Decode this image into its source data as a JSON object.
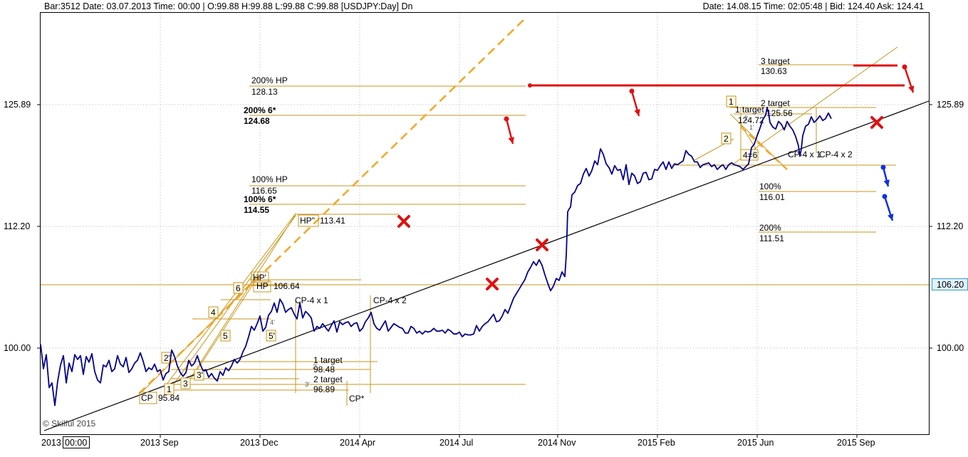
{
  "header": {
    "left": "Bar:3512  Date: 03.07.2013  Time:  00:00  | O:99.88  H:99.88  L:99.88  C:99.88   [USDJPY:Day]  Dn",
    "right": "Date: 14.08.15  Time: 02:05:48  | Bid:  124.40  Ask:  124.41"
  },
  "footer": {
    "first_label": "2013",
    "time_box": "00:00",
    "watermark": "© Skilful 2015"
  },
  "colors": {
    "price": "#00008b",
    "level": "#c8961e",
    "dash": "#f5a623",
    "red": "#e01010",
    "blue": "#1030e0",
    "highlight_bg": "#dff2fa",
    "grid": "#b8b8b8"
  },
  "chart_data": {
    "type": "line",
    "symbol": "USDJPY",
    "timeframe": "Day",
    "x_ticks": [
      "2013 Sep",
      "2013 Dec",
      "2014 Apr",
      "2014 Jul",
      "2014 Nov",
      "2015 Feb",
      "2015 Jun",
      "2015 Sep"
    ],
    "y_ticks": [
      "125.89",
      "112.20",
      "100.00"
    ],
    "current_price_label": "106.20",
    "series": [
      {
        "values": [
          [
            0,
            100.4
          ],
          [
            4,
            97.8
          ],
          [
            8,
            99.3
          ],
          [
            12,
            95.8
          ],
          [
            16,
            96.3
          ],
          [
            20,
            93.9
          ],
          [
            24,
            96.5
          ],
          [
            28,
            98.2
          ],
          [
            32,
            99.2
          ],
          [
            36,
            96.3
          ],
          [
            40,
            98.4
          ],
          [
            44,
            97.5
          ],
          [
            48,
            99.3
          ],
          [
            52,
            98.8
          ],
          [
            56,
            99.2
          ],
          [
            60,
            97.2
          ],
          [
            64,
            99.1
          ],
          [
            68,
            98.5
          ],
          [
            72,
            99.4
          ],
          [
            76,
            97.5
          ],
          [
            80,
            96.6
          ],
          [
            84,
            96.3
          ],
          [
            88,
            98.2
          ],
          [
            92,
            98.0
          ],
          [
            96,
            98.7
          ],
          [
            100,
            97.5
          ],
          [
            104,
            97.8
          ],
          [
            108,
            99.2
          ],
          [
            112,
            98.3
          ],
          [
            116,
            98.0
          ],
          [
            120,
            99.0
          ],
          [
            124,
            97.4
          ],
          [
            128,
            97.8
          ],
          [
            132,
            98.4
          ],
          [
            136,
            98.7
          ],
          [
            140,
            99.5
          ],
          [
            144,
            98.6
          ],
          [
            148,
            97.5
          ],
          [
            152,
            97.9
          ],
          [
            156,
            97.7
          ],
          [
            160,
            98.3
          ],
          [
            164,
            97.5
          ],
          [
            168,
            97.7
          ],
          [
            172,
            96.6
          ],
          [
            176,
            97.3
          ],
          [
            180,
            97.5
          ],
          [
            184,
            99.8
          ],
          [
            188,
            99.1
          ],
          [
            192,
            98.1
          ],
          [
            196,
            97.4
          ],
          [
            200,
            97.0
          ],
          [
            204,
            97.4
          ],
          [
            208,
            98.7
          ],
          [
            212,
            98.1
          ],
          [
            216,
            98.4
          ],
          [
            220,
            99.2
          ],
          [
            224,
            98.3
          ],
          [
            228,
            97.6
          ],
          [
            232,
            97.7
          ],
          [
            236,
            96.9
          ],
          [
            240,
            97.3
          ],
          [
            244,
            96.8
          ],
          [
            248,
            96.5
          ],
          [
            252,
            97.5
          ],
          [
            256,
            97.1
          ],
          [
            260,
            97.9
          ],
          [
            264,
            97.6
          ],
          [
            268,
            98.1
          ],
          [
            272,
            98.8
          ],
          [
            276,
            98.4
          ],
          [
            280,
            98.8
          ],
          [
            284,
            99.6
          ],
          [
            288,
            100.2
          ],
          [
            292,
            101.2
          ],
          [
            296,
            102.3
          ],
          [
            300,
            101.9
          ],
          [
            304,
            102.6
          ],
          [
            308,
            103.4
          ],
          [
            312,
            101.8
          ],
          [
            316,
            102.2
          ],
          [
            320,
            103.5
          ],
          [
            324,
            103.9
          ],
          [
            328,
            104.8
          ],
          [
            332,
            103.8
          ],
          [
            336,
            105.2
          ],
          [
            340,
            104.7
          ],
          [
            344,
            103.8
          ],
          [
            348,
            104.1
          ],
          [
            352,
            104.3
          ],
          [
            356,
            103.6
          ],
          [
            360,
            103.1
          ],
          [
            364,
            104.8
          ],
          [
            368,
            103.2
          ],
          [
            372,
            103.9
          ],
          [
            376,
            103.6
          ],
          [
            380,
            103.2
          ],
          [
            384,
            101.8
          ],
          [
            388,
            102.3
          ],
          [
            392,
            102.1
          ],
          [
            396,
            102.6
          ],
          [
            400,
            102.2
          ],
          [
            404,
            101.8
          ],
          [
            408,
            102.4
          ],
          [
            412,
            102.9
          ],
          [
            416,
            101.7
          ],
          [
            420,
            102.8
          ],
          [
            424,
            102.5
          ],
          [
            428,
            102.7
          ],
          [
            432,
            102.8
          ],
          [
            436,
            102.3
          ],
          [
            440,
            102.6
          ],
          [
            444,
            102.7
          ],
          [
            448,
            101.8
          ],
          [
            452,
            102.1
          ],
          [
            456,
            102.8
          ],
          [
            460,
            103.2
          ],
          [
            464,
            103.8
          ],
          [
            468,
            102.6
          ],
          [
            472,
            102.1
          ],
          [
            476,
            101.9
          ],
          [
            480,
            102.4
          ],
          [
            484,
            102.9
          ],
          [
            488,
            101.8
          ],
          [
            492,
            102.2
          ],
          [
            496,
            102.6
          ],
          [
            500,
            102.4
          ],
          [
            504,
            102.2
          ],
          [
            508,
            102.1
          ],
          [
            512,
            101.6
          ],
          [
            516,
            101.6
          ],
          [
            520,
            102.3
          ],
          [
            524,
            102.1
          ],
          [
            528,
            101.6
          ],
          [
            532,
            101.8
          ],
          [
            536,
            101.5
          ],
          [
            540,
            101.8
          ],
          [
            544,
            101.7
          ],
          [
            548,
            101.8
          ],
          [
            552,
            102.1
          ],
          [
            556,
            101.8
          ],
          [
            560,
            101.8
          ],
          [
            564,
            101.9
          ],
          [
            568,
            101.6
          ],
          [
            572,
            102.0
          ],
          [
            576,
            101.8
          ],
          [
            580,
            101.5
          ],
          [
            584,
            101.5
          ],
          [
            588,
            101.7
          ],
          [
            592,
            101.2
          ],
          [
            596,
            101.5
          ],
          [
            600,
            101.4
          ],
          [
            604,
            101.4
          ],
          [
            608,
            101.5
          ],
          [
            612,
            102.4
          ],
          [
            616,
            101.8
          ],
          [
            620,
            102.3
          ],
          [
            624,
            102.6
          ],
          [
            628,
            102.8
          ],
          [
            632,
            103.2
          ],
          [
            636,
            103.6
          ],
          [
            640,
            102.8
          ],
          [
            644,
            102.9
          ],
          [
            648,
            103.4
          ],
          [
            652,
            104.1
          ],
          [
            656,
            103.7
          ],
          [
            660,
            104.5
          ],
          [
            664,
            105.3
          ],
          [
            668,
            105.8
          ],
          [
            672,
            106.3
          ],
          [
            676,
            106.8
          ],
          [
            680,
            107.3
          ],
          [
            684,
            108.1
          ],
          [
            688,
            108.6
          ],
          [
            692,
            109.2
          ],
          [
            696,
            108.8
          ],
          [
            700,
            109.4
          ],
          [
            704,
            108.8
          ],
          [
            708,
            107.8
          ],
          [
            712,
            106.9
          ],
          [
            716,
            106.1
          ],
          [
            720,
            106.6
          ],
          [
            724,
            107.4
          ],
          [
            728,
            107.2
          ],
          [
            732,
            108.1
          ],
          [
            736,
            107.6
          ],
          [
            738,
            109.9
          ],
          [
            740,
            114.5
          ],
          [
            742,
            114.8
          ],
          [
            744,
            115.0
          ],
          [
            746,
            116.3
          ],
          [
            750,
            116.6
          ],
          [
            754,
            117.3
          ],
          [
            758,
            117.5
          ],
          [
            762,
            118.5
          ],
          [
            766,
            119.1
          ],
          [
            770,
            118.3
          ],
          [
            774,
            118.9
          ],
          [
            778,
            119.9
          ],
          [
            782,
            119.5
          ],
          [
            786,
            121.2
          ],
          [
            790,
            120.6
          ],
          [
            794,
            119.6
          ],
          [
            798,
            119.2
          ],
          [
            802,
            118.5
          ],
          [
            806,
            119.4
          ],
          [
            810,
            118.9
          ],
          [
            814,
            119.0
          ],
          [
            818,
            117.9
          ],
          [
            822,
            119.5
          ],
          [
            826,
            117.4
          ],
          [
            830,
            118.6
          ],
          [
            834,
            118.3
          ],
          [
            838,
            117.5
          ],
          [
            842,
            117.7
          ],
          [
            846,
            118.6
          ],
          [
            850,
            118.7
          ],
          [
            854,
            117.9
          ],
          [
            858,
            118.0
          ],
          [
            862,
            119.0
          ],
          [
            866,
            118.9
          ],
          [
            870,
            119.4
          ],
          [
            874,
            119.8
          ],
          [
            878,
            119.0
          ],
          [
            882,
            119.8
          ],
          [
            886,
            119.1
          ],
          [
            890,
            119.6
          ],
          [
            894,
            119.5
          ],
          [
            898,
            119.7
          ],
          [
            902,
            119.9
          ],
          [
            906,
            121.0
          ],
          [
            910,
            120.6
          ],
          [
            914,
            120.4
          ],
          [
            918,
            119.8
          ],
          [
            922,
            119.8
          ],
          [
            926,
            119.2
          ],
          [
            930,
            119.5
          ],
          [
            934,
            119.6
          ],
          [
            938,
            119.7
          ],
          [
            942,
            119.3
          ],
          [
            946,
            119.5
          ],
          [
            950,
            119.0
          ],
          [
            954,
            119.3
          ],
          [
            958,
            119.5
          ],
          [
            962,
            119.0
          ],
          [
            966,
            119.5
          ],
          [
            970,
            119.7
          ],
          [
            974,
            119.5
          ],
          [
            978,
            119.4
          ],
          [
            982,
            119.3
          ],
          [
            986,
            119.0
          ],
          [
            990,
            119.3
          ],
          [
            994,
            119.6
          ],
          [
            998,
            121.3
          ],
          [
            1002,
            121.7
          ],
          [
            1006,
            122.6
          ],
          [
            1010,
            123.4
          ],
          [
            1014,
            124.3
          ],
          [
            1018,
            124.8
          ],
          [
            1020,
            125.6
          ],
          [
            1022,
            125.0
          ],
          [
            1024,
            124.0
          ],
          [
            1028,
            123.5
          ],
          [
            1032,
            123.3
          ],
          [
            1036,
            124.1
          ],
          [
            1040,
            123.8
          ],
          [
            1044,
            123.2
          ],
          [
            1048,
            124.1
          ],
          [
            1052,
            123.6
          ],
          [
            1056,
            123.2
          ],
          [
            1060,
            122.5
          ],
          [
            1064,
            121.5
          ],
          [
            1066,
            120.4
          ],
          [
            1068,
            121.2
          ],
          [
            1070,
            122.6
          ],
          [
            1074,
            123.6
          ],
          [
            1078,
            123.8
          ],
          [
            1082,
            124.6
          ],
          [
            1086,
            124.0
          ],
          [
            1090,
            124.3
          ],
          [
            1094,
            124.7
          ],
          [
            1098,
            124.2
          ],
          [
            1102,
            124.4
          ],
          [
            1106,
            125.0
          ],
          [
            1110,
            124.4
          ]
        ]
      }
    ],
    "annotations": {
      "price_labels": [
        "200% HP",
        "128.13",
        "200% 6*",
        "124.68",
        "100% HP",
        "116.65",
        "100% 6*",
        "114.55",
        "HP\"",
        "113.41",
        "HP'",
        "HP",
        "106.64",
        "CP-4 x 1",
        "CP-4 x 2",
        "1 target",
        "98.48",
        "2 target",
        "96.89",
        "CP*",
        "CP",
        "95.84",
        "3 target",
        "130.63",
        "1 target",
        "124.72",
        "2 target",
        "125.56",
        "CP-4 x 1",
        "CP-4 x 2",
        "100%",
        "116.01",
        "200%",
        "111.51"
      ],
      "box_labels": [
        "1",
        "2'",
        "3",
        "3'",
        "4",
        "5",
        "5'",
        "6",
        "1",
        "2",
        "4=6"
      ],
      "small_marks": [
        "4'",
        "2'",
        "3'",
        "1'",
        "2"
      ],
      "cross_marks": 6
    }
  }
}
